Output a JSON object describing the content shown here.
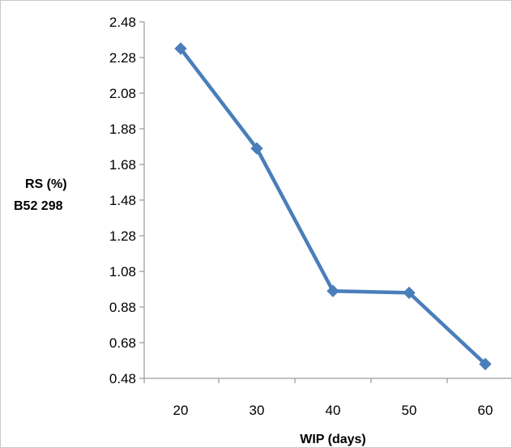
{
  "chart_data": {
    "type": "line",
    "x": [
      20,
      30,
      40,
      50,
      60
    ],
    "series": [
      {
        "values": [
          2.33,
          1.77,
          0.97,
          0.96,
          0.56
        ],
        "color": "#4a7ebb",
        "marker": "diamond"
      }
    ],
    "xlabel": "WIP (days)",
    "ylabel": [
      "RS (%)",
      "B52 298"
    ],
    "ylim": [
      0.48,
      2.48
    ],
    "yticks": [
      "0.48",
      "0.68",
      "0.88",
      "1.08",
      "1.28",
      "1.48",
      "1.68",
      "1.88",
      "2.08",
      "2.28",
      "2.48"
    ],
    "xticks": [
      "20",
      "30",
      "40",
      "50",
      "60"
    ],
    "grid": false,
    "legend": "none",
    "axis_color": "#868686"
  }
}
